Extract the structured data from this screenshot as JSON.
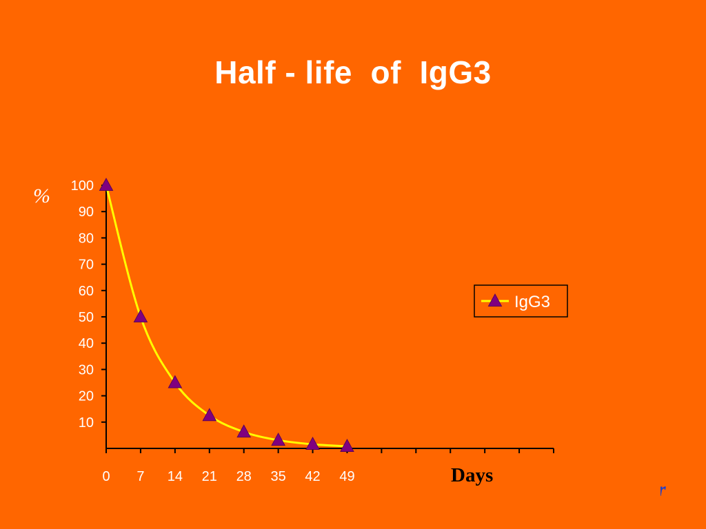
{
  "slide": {
    "title": "Half - life  of  IgG3",
    "corner_mark": "r"
  },
  "chart_data": {
    "type": "line",
    "title": "Half - life  of  IgG3",
    "xlabel": "Days",
    "ylabel": "%",
    "x": [
      0,
      7,
      14,
      21,
      28,
      35,
      42,
      49
    ],
    "x_tick_labels": [
      "0",
      "7",
      "14",
      "21",
      "28",
      "35",
      "42",
      "49"
    ],
    "x_axis_max": 91,
    "y_ticks": [
      10,
      20,
      30,
      40,
      50,
      60,
      70,
      80,
      90,
      100
    ],
    "ylim": [
      0,
      100
    ],
    "series": [
      {
        "name": "IgG3",
        "values": [
          100,
          50,
          25,
          12.5,
          6.25,
          3.125,
          1.5625,
          0.78
        ],
        "line_color": "#FFFF00",
        "marker": "triangle",
        "marker_color": "#800080"
      }
    ],
    "legend": {
      "position": "right",
      "entries": [
        "IgG3"
      ]
    },
    "grid": false,
    "axis_color": "#000000",
    "tick_label_color": "#FFFFFF"
  },
  "colors": {
    "background": "#FF6600",
    "title": "#FFFFFF",
    "curve": "#FFFF00",
    "marker": "#800080",
    "axis": "#000000"
  }
}
